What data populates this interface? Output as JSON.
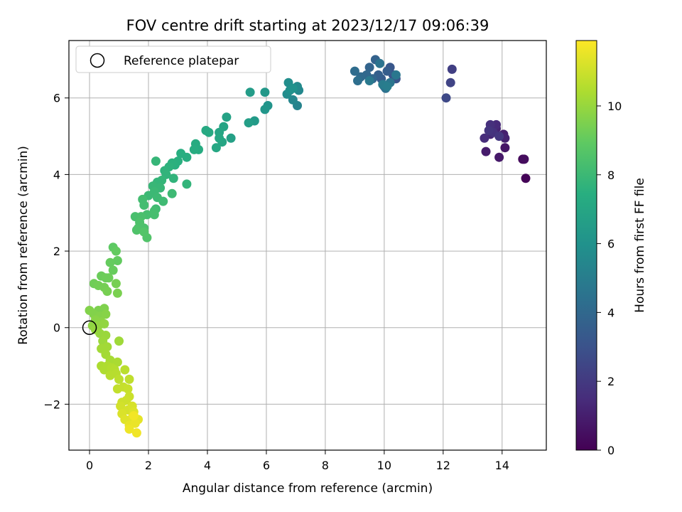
{
  "chart_data": {
    "type": "scatter",
    "title": "FOV centre drift starting at 2023/12/17 09:06:39",
    "xlabel": "Angular distance from reference (arcmin)",
    "ylabel": "Rotation from reference (arcmin)",
    "xlim": [
      -0.7,
      15.5
    ],
    "ylim": [
      -3.2,
      7.5
    ],
    "xticks": [
      0,
      2,
      4,
      6,
      8,
      10,
      12,
      14
    ],
    "yticks": [
      -2,
      0,
      2,
      4,
      6
    ],
    "xtick_labels": [
      "0",
      "2",
      "4",
      "6",
      "8",
      "10",
      "12",
      "14"
    ],
    "ytick_labels": [
      "−2",
      "0",
      "2",
      "4",
      "6"
    ],
    "grid": true,
    "legend": {
      "placement": "top-left",
      "label": "Reference platepar"
    },
    "reference_point": {
      "x": 0,
      "y": 0
    },
    "colorbar": {
      "label": "Hours from first FF file",
      "colormap": "viridis",
      "range": [
        0,
        11.9
      ],
      "ticks": [
        0,
        2,
        4,
        6,
        8,
        10
      ],
      "tick_labels": [
        "0",
        "2",
        "4",
        "6",
        "8",
        "10"
      ]
    },
    "points": [
      [
        14.8,
        3.9,
        0.1
      ],
      [
        14.7,
        4.4,
        0.3
      ],
      [
        14.75,
        4.4,
        0.4
      ],
      [
        14.1,
        4.7,
        0.7
      ],
      [
        13.9,
        4.45,
        0.8
      ],
      [
        13.45,
        4.6,
        0.9
      ],
      [
        14.05,
        5.05,
        1.0
      ],
      [
        14.1,
        4.95,
        1.1
      ],
      [
        13.8,
        5.2,
        1.2
      ],
      [
        13.6,
        5.05,
        1.3
      ],
      [
        13.8,
        5.3,
        1.4
      ],
      [
        13.4,
        4.95,
        1.5
      ],
      [
        13.6,
        5.3,
        1.6
      ],
      [
        13.7,
        5.1,
        1.7
      ],
      [
        13.55,
        5.15,
        1.8
      ],
      [
        13.9,
        5.0,
        1.9
      ],
      [
        12.3,
        6.75,
        2.2
      ],
      [
        12.25,
        6.4,
        2.4
      ],
      [
        12.1,
        6.0,
        2.6
      ],
      [
        10.3,
        6.6,
        3.0
      ],
      [
        10.4,
        6.5,
        3.1
      ],
      [
        10.2,
        6.8,
        3.2
      ],
      [
        10.0,
        6.3,
        3.3
      ],
      [
        9.9,
        6.5,
        3.4
      ],
      [
        10.1,
        6.7,
        3.5
      ],
      [
        9.8,
        6.6,
        3.6
      ],
      [
        9.7,
        7.0,
        3.7
      ],
      [
        9.5,
        6.8,
        3.8
      ],
      [
        9.6,
        6.5,
        3.9
      ],
      [
        9.4,
        6.6,
        4.0
      ],
      [
        9.2,
        6.55,
        4.1
      ],
      [
        9.0,
        6.7,
        4.2
      ],
      [
        9.1,
        6.45,
        4.3
      ],
      [
        10.05,
        6.25,
        4.4
      ],
      [
        9.85,
        6.9,
        4.5
      ],
      [
        10.2,
        6.4,
        4.6
      ],
      [
        10.4,
        6.6,
        4.7
      ],
      [
        9.5,
        6.45,
        4.8
      ],
      [
        9.95,
        6.35,
        4.9
      ],
      [
        10.1,
        6.3,
        5.0
      ],
      [
        7.05,
        5.8,
        5.3
      ],
      [
        6.9,
        5.95,
        5.4
      ],
      [
        7.1,
        6.2,
        5.5
      ],
      [
        7.05,
        6.3,
        5.6
      ],
      [
        6.7,
        6.1,
        5.7
      ],
      [
        6.75,
        6.4,
        5.8
      ],
      [
        6.8,
        6.2,
        5.9
      ],
      [
        6.9,
        6.25,
        6.0
      ],
      [
        6.05,
        5.8,
        6.1
      ],
      [
        5.95,
        5.7,
        6.2
      ],
      [
        5.95,
        6.15,
        6.3
      ],
      [
        5.6,
        5.4,
        6.4
      ],
      [
        5.45,
        6.15,
        6.5
      ],
      [
        5.4,
        5.35,
        6.6
      ],
      [
        4.8,
        4.95,
        6.7
      ],
      [
        4.65,
        5.5,
        6.8
      ],
      [
        4.55,
        5.25,
        6.9
      ],
      [
        4.4,
        5.1,
        7.0
      ],
      [
        4.5,
        4.85,
        7.0
      ],
      [
        4.3,
        4.7,
        7.1
      ],
      [
        4.4,
        4.95,
        7.1
      ],
      [
        4.05,
        5.1,
        7.2
      ],
      [
        3.95,
        5.15,
        7.2
      ],
      [
        3.7,
        4.65,
        7.3
      ],
      [
        3.6,
        4.8,
        7.3
      ],
      [
        3.55,
        4.65,
        7.35
      ],
      [
        3.3,
        4.45,
        7.4
      ],
      [
        3.1,
        4.55,
        7.45
      ],
      [
        3.0,
        4.35,
        7.5
      ],
      [
        2.9,
        4.25,
        7.5
      ],
      [
        2.8,
        4.3,
        7.55
      ],
      [
        2.7,
        4.2,
        7.6
      ],
      [
        2.55,
        4.1,
        7.65
      ],
      [
        2.85,
        3.9,
        7.7
      ],
      [
        2.6,
        4.0,
        7.7
      ],
      [
        3.3,
        3.75,
        7.75
      ],
      [
        2.45,
        3.85,
        7.8
      ],
      [
        2.3,
        3.8,
        7.8
      ],
      [
        2.25,
        4.35,
        7.85
      ],
      [
        2.15,
        3.7,
        7.9
      ],
      [
        2.4,
        3.65,
        7.9
      ],
      [
        2.2,
        3.55,
        8.0
      ],
      [
        2.0,
        3.45,
        8.0
      ],
      [
        2.3,
        3.4,
        8.05
      ],
      [
        2.8,
        3.5,
        8.05
      ],
      [
        2.5,
        3.3,
        8.1
      ],
      [
        2.25,
        3.1,
        8.1
      ],
      [
        1.8,
        3.35,
        8.2
      ],
      [
        1.85,
        3.2,
        8.2
      ],
      [
        2.2,
        3.05,
        8.25
      ],
      [
        1.95,
        2.95,
        8.3
      ],
      [
        2.2,
        2.95,
        8.3
      ],
      [
        1.55,
        2.9,
        8.35
      ],
      [
        1.75,
        2.9,
        8.4
      ],
      [
        1.85,
        2.6,
        8.45
      ],
      [
        1.7,
        2.75,
        8.5
      ],
      [
        1.65,
        2.6,
        8.5
      ],
      [
        1.6,
        2.55,
        8.55
      ],
      [
        1.95,
        2.35,
        8.6
      ],
      [
        1.85,
        2.5,
        8.65
      ],
      [
        0.8,
        2.1,
        8.9
      ],
      [
        0.9,
        2.0,
        9.0
      ],
      [
        0.95,
        1.75,
        9.0
      ],
      [
        0.7,
        1.7,
        9.05
      ],
      [
        0.8,
        1.5,
        9.1
      ],
      [
        0.4,
        1.35,
        9.15
      ],
      [
        0.55,
        1.3,
        9.2
      ],
      [
        0.65,
        1.3,
        9.2
      ],
      [
        0.15,
        1.15,
        9.25
      ],
      [
        0.3,
        1.1,
        9.3
      ],
      [
        0.5,
        1.05,
        9.35
      ],
      [
        0.6,
        0.95,
        9.4
      ],
      [
        0.9,
        1.15,
        9.4
      ],
      [
        0.95,
        0.9,
        9.45
      ],
      [
        0.3,
        0.45,
        9.5
      ],
      [
        0.5,
        0.5,
        9.55
      ],
      [
        0.0,
        0.45,
        9.6
      ],
      [
        0.15,
        0.35,
        9.6
      ],
      [
        0.35,
        0.3,
        9.65
      ],
      [
        0.55,
        0.35,
        9.7
      ],
      [
        0.2,
        0.2,
        9.75
      ],
      [
        0.4,
        0.15,
        9.8
      ],
      [
        0.1,
        0.05,
        9.85
      ],
      [
        0.3,
        0.05,
        9.9
      ],
      [
        0.5,
        0.1,
        9.9
      ],
      [
        0.2,
        -0.05,
        9.95
      ],
      [
        0.35,
        -0.15,
        10.0
      ],
      [
        0.55,
        -0.2,
        10.05
      ],
      [
        0.45,
        -0.35,
        10.1
      ],
      [
        1.0,
        -0.35,
        10.15
      ],
      [
        0.4,
        -0.55,
        10.2
      ],
      [
        0.6,
        -0.5,
        10.2
      ],
      [
        0.55,
        -0.7,
        10.25
      ],
      [
        0.7,
        -0.85,
        10.3
      ],
      [
        0.95,
        -0.9,
        10.35
      ],
      [
        0.4,
        -1.0,
        10.4
      ],
      [
        0.5,
        -1.1,
        10.45
      ],
      [
        0.6,
        -1.0,
        10.45
      ],
      [
        0.75,
        -1.05,
        10.5
      ],
      [
        0.85,
        -1.1,
        10.55
      ],
      [
        0.7,
        -1.25,
        10.6
      ],
      [
        0.9,
        -1.2,
        10.6
      ],
      [
        1.2,
        -1.1,
        10.65
      ],
      [
        1.0,
        -1.35,
        10.7
      ],
      [
        1.35,
        -1.35,
        10.75
      ],
      [
        0.95,
        -1.6,
        10.8
      ],
      [
        1.15,
        -1.55,
        10.85
      ],
      [
        1.3,
        -1.6,
        10.9
      ],
      [
        1.35,
        -1.8,
        10.95
      ],
      [
        1.1,
        -1.95,
        11.0
      ],
      [
        1.25,
        -1.9,
        11.0
      ],
      [
        1.05,
        -2.05,
        11.1
      ],
      [
        1.3,
        -2.15,
        11.15
      ],
      [
        1.45,
        -2.05,
        11.2
      ],
      [
        1.1,
        -2.25,
        11.25
      ],
      [
        1.5,
        -2.2,
        11.3
      ],
      [
        1.2,
        -2.4,
        11.35
      ],
      [
        1.45,
        -2.35,
        11.4
      ],
      [
        1.65,
        -2.4,
        11.45
      ],
      [
        1.35,
        -2.55,
        11.5
      ],
      [
        1.55,
        -2.5,
        11.55
      ],
      [
        1.35,
        -2.65,
        11.6
      ],
      [
        1.6,
        -2.75,
        11.65
      ],
      [
        1.5,
        -2.3,
        11.7
      ]
    ]
  }
}
